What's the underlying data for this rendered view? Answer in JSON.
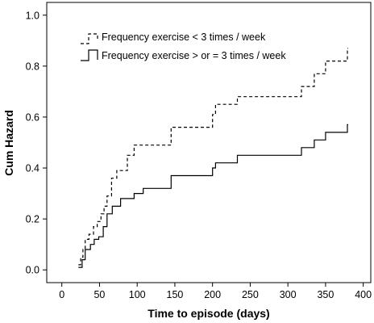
{
  "chart_data": {
    "type": "line",
    "step": true,
    "xlabel": "Time to episode (days)",
    "ylabel": "Cum Hazard",
    "xlim": [
      -20,
      410
    ],
    "ylim": [
      -0.05,
      1.05
    ],
    "xticks": [
      0,
      50,
      100,
      150,
      200,
      250,
      300,
      350,
      400
    ],
    "xtick_labels": [
      "0",
      "50",
      "100",
      "150",
      "200",
      "250",
      "300",
      "350",
      "400"
    ],
    "yticks": [
      0.0,
      0.2,
      0.4,
      0.6,
      0.8,
      1.0
    ],
    "ytick_labels": [
      "0.0",
      "0.2",
      "0.4",
      "0.6",
      "0.8",
      "1.0"
    ],
    "grid": false,
    "legend_position": "top-left",
    "series": [
      {
        "name": "Frequency exercise < 3 times / week",
        "line_style": "dashed",
        "color": "#000000",
        "x": [
          22,
          25,
          28,
          31,
          36,
          42,
          47,
          52,
          56,
          60,
          66,
          73,
          87,
          96,
          108,
          145,
          200,
          204,
          233,
          318,
          335,
          350,
          379,
          380
        ],
        "y": [
          0.02,
          0.05,
          0.08,
          0.12,
          0.14,
          0.17,
          0.19,
          0.22,
          0.25,
          0.29,
          0.36,
          0.39,
          0.45,
          0.49,
          0.49,
          0.56,
          0.61,
          0.65,
          0.68,
          0.72,
          0.77,
          0.82,
          0.87,
          0.87
        ]
      },
      {
        "name": "Frequency exercise > or = 3 times / week",
        "line_style": "solid",
        "color": "#000000",
        "x": [
          22,
          27,
          31,
          38,
          43,
          49,
          55,
          60,
          67,
          78,
          96,
          108,
          145,
          200,
          204,
          233,
          318,
          335,
          350,
          379,
          380
        ],
        "y": [
          0.01,
          0.04,
          0.08,
          0.1,
          0.12,
          0.13,
          0.17,
          0.22,
          0.25,
          0.28,
          0.3,
          0.32,
          0.37,
          0.4,
          0.42,
          0.45,
          0.48,
          0.51,
          0.54,
          0.57,
          0.57
        ]
      }
    ]
  }
}
